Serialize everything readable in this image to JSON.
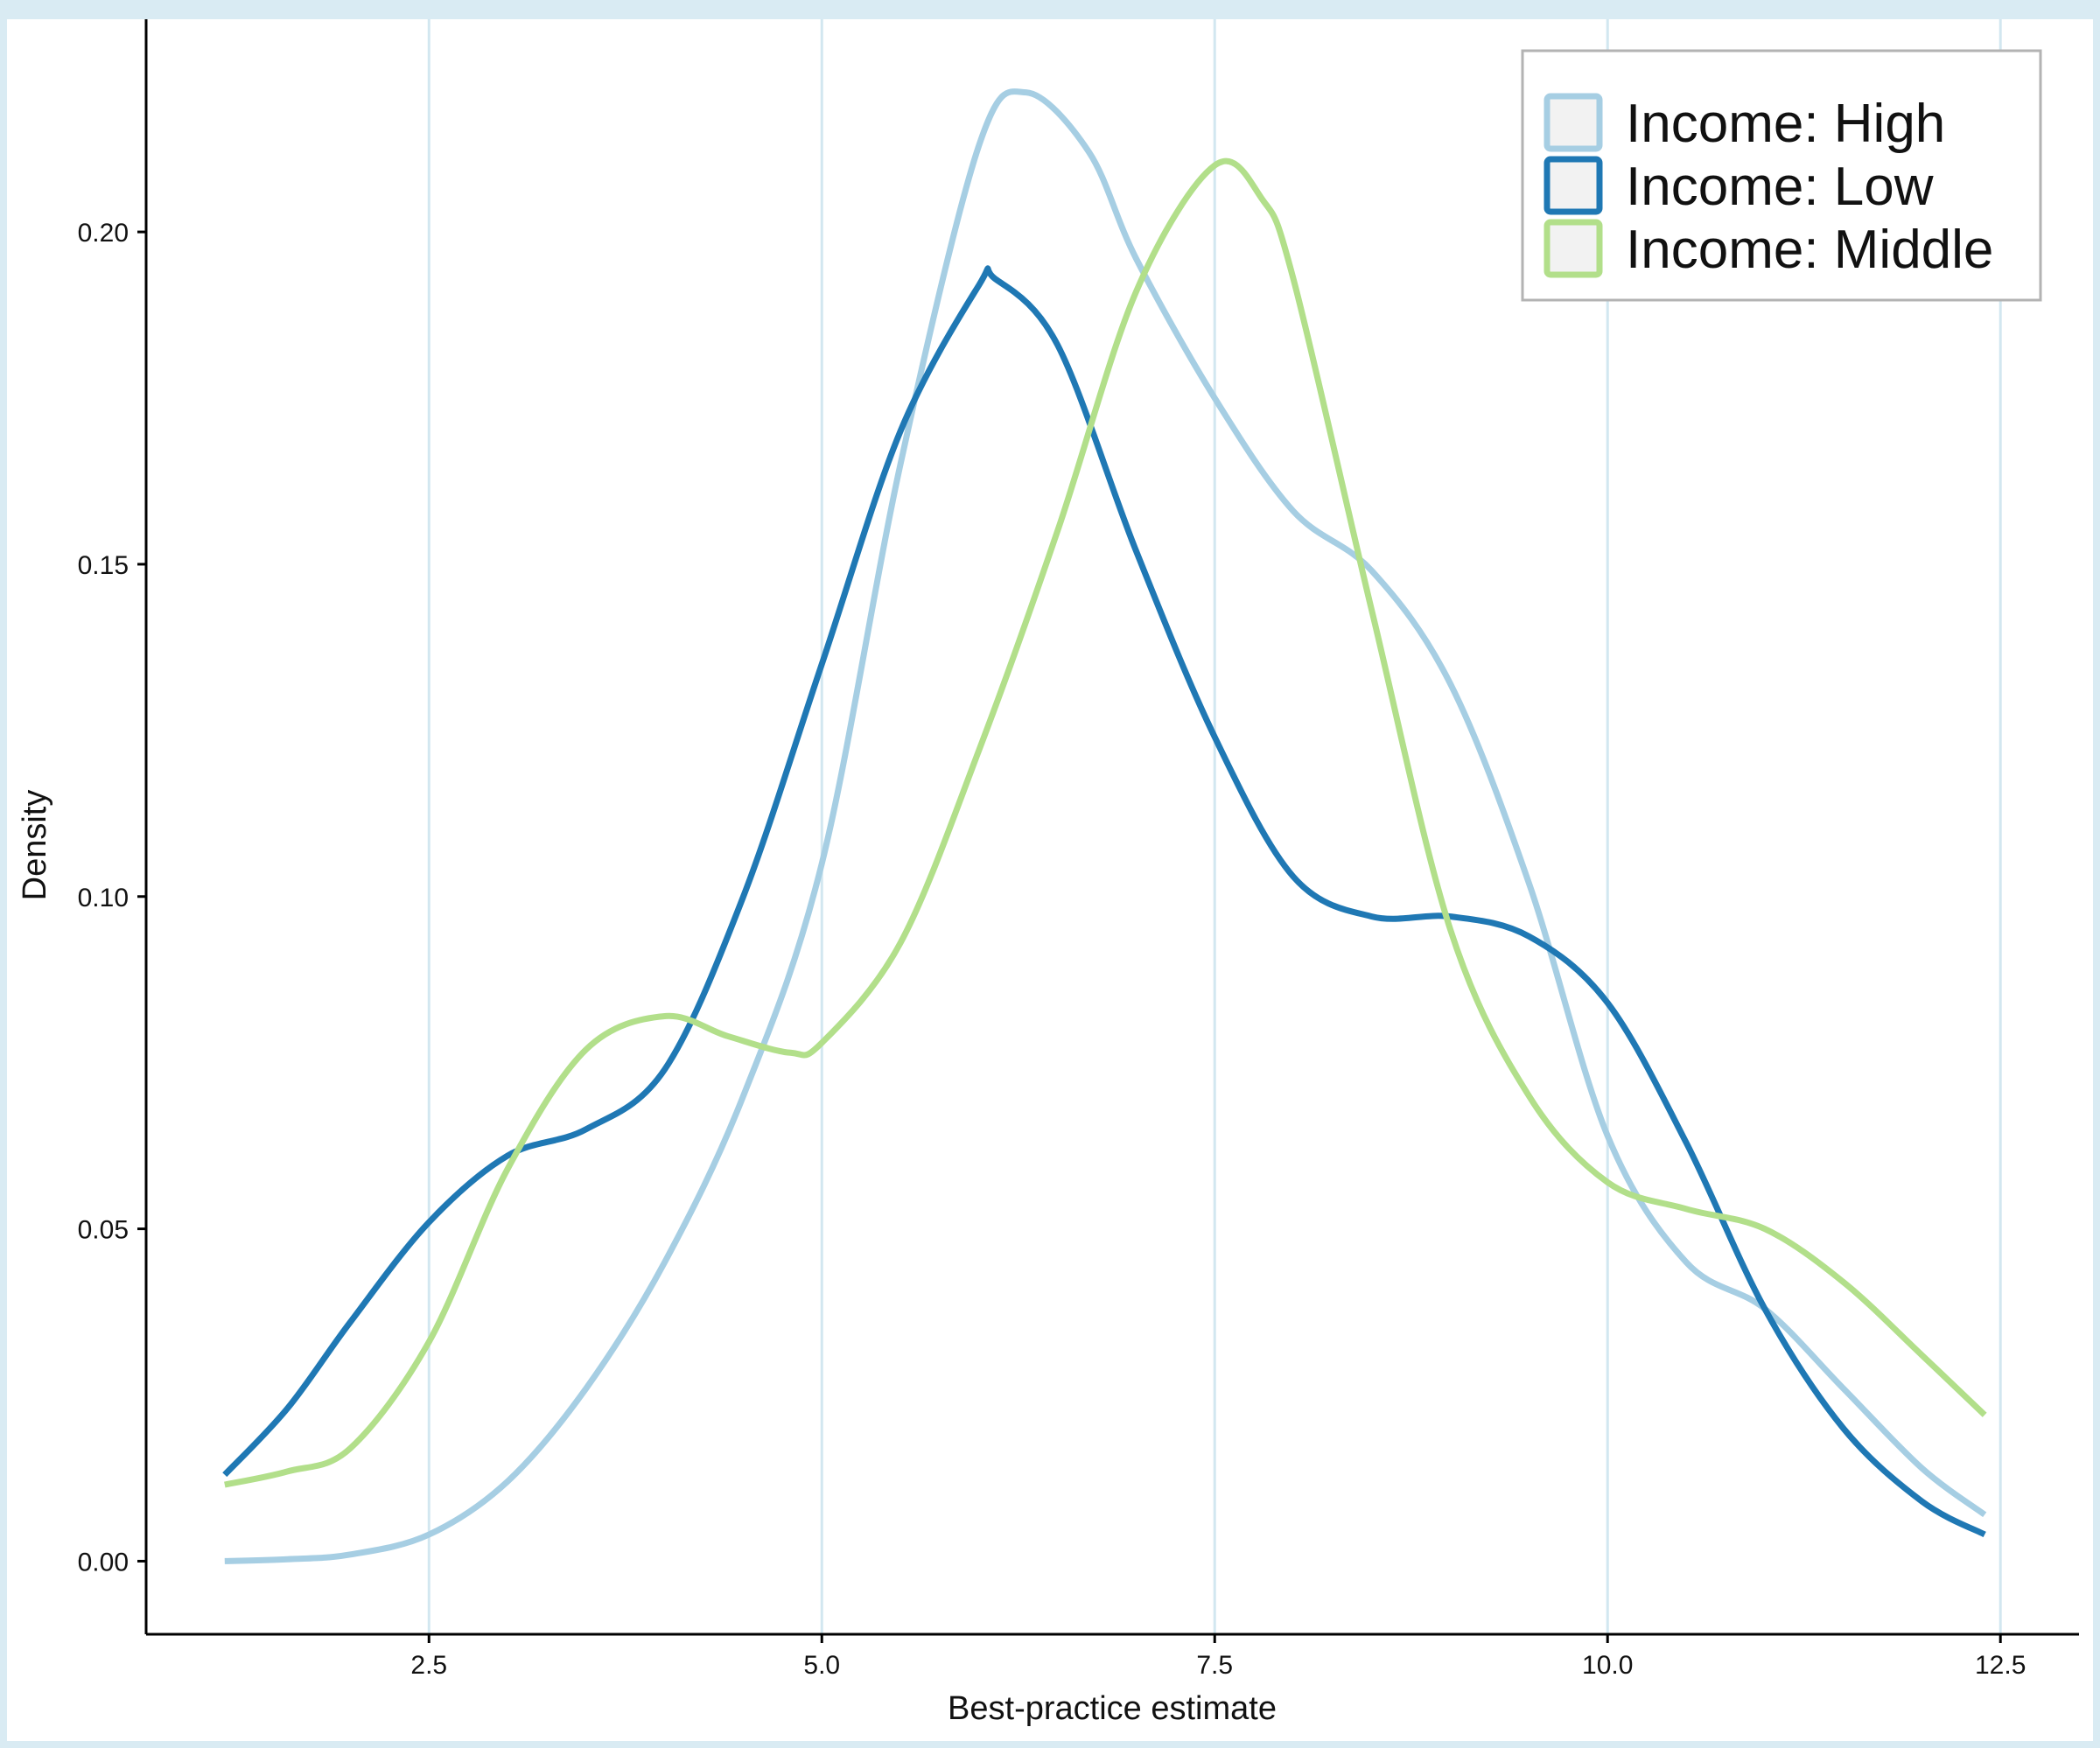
{
  "chart_data": {
    "type": "line",
    "title": "",
    "xlabel": "Best-practice estimate",
    "ylabel": "Density",
    "xlim": [
      0.7,
      13.0
    ],
    "ylim": [
      -0.011,
      0.232
    ],
    "x_ticks": [
      2.5,
      5.0,
      7.5,
      10.0,
      12.5
    ],
    "x_tick_labels": [
      "2.5",
      "5.0",
      "7.5",
      "10.0",
      "12.5"
    ],
    "y_ticks": [
      0.0,
      0.05,
      0.1,
      0.15,
      0.2
    ],
    "y_tick_labels": [
      "0.00",
      "0.05",
      "0.10",
      "0.15",
      "0.20"
    ],
    "grid": "vertical major lines",
    "legend_position": "top-right",
    "background": "#ffffff",
    "outer_background": "#d9ebf3",
    "series": [
      {
        "name": "Income: High",
        "color": "#a6cee3",
        "x": [
          1.2,
          1.6,
          2.0,
          2.5,
          3.0,
          3.5,
          4.0,
          4.5,
          5.0,
          5.5,
          6.0,
          6.3,
          6.7,
          7.0,
          7.5,
          8.0,
          8.5,
          9.0,
          9.5,
          10.0,
          10.5,
          11.0,
          11.5,
          12.0,
          12.4
        ],
        "y": [
          0.0,
          0.0003,
          0.001,
          0.004,
          0.012,
          0.026,
          0.045,
          0.07,
          0.105,
          0.165,
          0.213,
          0.221,
          0.212,
          0.196,
          0.175,
          0.158,
          0.149,
          0.132,
          0.102,
          0.064,
          0.045,
          0.038,
          0.026,
          0.014,
          0.007
        ]
      },
      {
        "name": "Income: Low",
        "color": "#1f78b4",
        "x": [
          1.2,
          1.6,
          2.0,
          2.5,
          3.0,
          3.5,
          4.0,
          4.5,
          5.0,
          5.5,
          6.0,
          6.1,
          6.5,
          7.0,
          7.5,
          8.0,
          8.5,
          9.0,
          9.5,
          10.0,
          10.5,
          11.0,
          11.5,
          12.0,
          12.4
        ],
        "y": [
          0.013,
          0.023,
          0.036,
          0.051,
          0.061,
          0.065,
          0.074,
          0.1,
          0.135,
          0.17,
          0.192,
          0.193,
          0.183,
          0.152,
          0.124,
          0.103,
          0.097,
          0.097,
          0.094,
          0.084,
          0.063,
          0.038,
          0.02,
          0.009,
          0.004
        ]
      },
      {
        "name": "Income: Middle",
        "color": "#b2df8a",
        "x": [
          1.2,
          1.6,
          2.0,
          2.5,
          3.0,
          3.5,
          4.0,
          4.4,
          4.8,
          5.0,
          5.5,
          6.0,
          6.5,
          7.0,
          7.5,
          7.8,
          8.0,
          8.5,
          9.0,
          9.5,
          10.0,
          10.5,
          11.0,
          11.5,
          12.0,
          12.4
        ],
        "y": [
          0.0115,
          0.0135,
          0.017,
          0.033,
          0.059,
          0.077,
          0.082,
          0.079,
          0.0765,
          0.078,
          0.093,
          0.122,
          0.155,
          0.191,
          0.21,
          0.205,
          0.193,
          0.143,
          0.095,
          0.07,
          0.057,
          0.053,
          0.05,
          0.042,
          0.031,
          0.022
        ]
      }
    ]
  }
}
